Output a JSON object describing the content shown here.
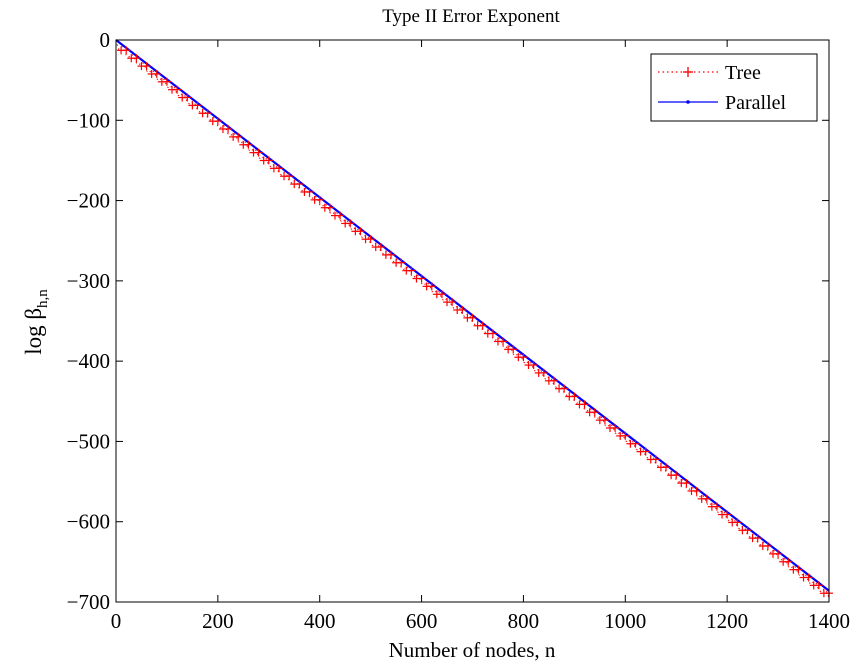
{
  "chart_data": {
    "type": "line",
    "title": "Type II Error Exponent",
    "xlabel": "Number of nodes, n",
    "ylabel_main": "log β",
    "ylabel_sub": "h,n",
    "xlim": [
      0,
      1400
    ],
    "ylim": [
      -700,
      0
    ],
    "xticks": [
      0,
      200,
      400,
      600,
      800,
      1000,
      1200,
      1400
    ],
    "yticks": [
      0,
      -100,
      -200,
      -300,
      -400,
      -500,
      -600,
      -700
    ],
    "xtick_labels": [
      "0",
      "200",
      "400",
      "600",
      "800",
      "1000",
      "1200",
      "1400"
    ],
    "ytick_labels": [
      "0",
      "−100",
      "−200",
      "−300",
      "−400",
      "−500",
      "−600",
      "−700"
    ],
    "grid": false,
    "legend_position": "top-right",
    "series": [
      {
        "name": "Tree",
        "color": "#ff0000",
        "style": "dotted line with plus markers",
        "slope": -0.49,
        "step_period": 20,
        "x_range": [
          0,
          1400
        ],
        "points_every": 1
      },
      {
        "name": "Parallel",
        "color": "#0000ff",
        "style": "solid line with point markers",
        "slope": -0.49,
        "x_range": [
          0,
          1400
        ],
        "endpoint_values": [
          [
            0,
            0
          ],
          [
            1400,
            -686
          ]
        ]
      }
    ]
  }
}
